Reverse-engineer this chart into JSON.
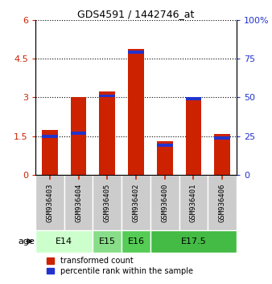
{
  "title": "GDS4591 / 1442746_at",
  "samples": [
    "GSM936403",
    "GSM936404",
    "GSM936405",
    "GSM936402",
    "GSM936400",
    "GSM936401",
    "GSM936406"
  ],
  "transformed_count": [
    1.75,
    3.02,
    3.22,
    4.88,
    1.32,
    2.97,
    1.58
  ],
  "percentile_rank_raw": [
    26,
    28,
    52,
    80,
    20,
    50,
    25
  ],
  "age_groups": [
    {
      "label": "E14",
      "start": 0,
      "end": 2,
      "color": "#ccffcc"
    },
    {
      "label": "E15",
      "start": 2,
      "end": 3,
      "color": "#88dd88"
    },
    {
      "label": "E16",
      "start": 3,
      "end": 4,
      "color": "#55cc55"
    },
    {
      "label": "E17.5",
      "start": 4,
      "end": 7,
      "color": "#44bb44"
    }
  ],
  "ylim_left": [
    0,
    6
  ],
  "yticks_left": [
    0,
    1.5,
    3.0,
    4.5,
    6
  ],
  "ytick_labels_left": [
    "0",
    "1.5",
    "3",
    "4.5",
    "6"
  ],
  "ylim_right": [
    0,
    100
  ],
  "yticks_right": [
    0,
    25,
    50,
    75,
    100
  ],
  "ytick_labels_right": [
    "0",
    "25",
    "50",
    "75",
    "100%"
  ],
  "bar_color": "#cc2200",
  "percentile_color": "#2233cc",
  "bar_width": 0.55,
  "legend_items": [
    {
      "color": "#cc2200",
      "label": "transformed count"
    },
    {
      "color": "#2233cc",
      "label": "percentile rank within the sample"
    }
  ]
}
